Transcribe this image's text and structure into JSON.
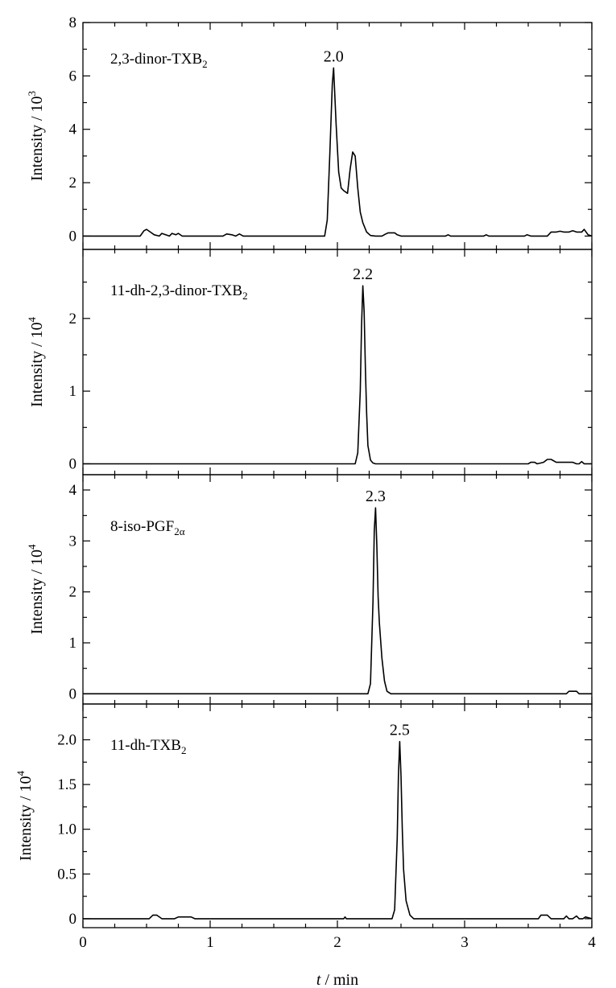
{
  "chart_data": {
    "type": "line",
    "title": "",
    "xlabel": {
      "italic": "t",
      "rest": " / min"
    },
    "x_ticks": [
      "0",
      "1",
      "2",
      "3",
      "4"
    ],
    "xlim": [
      0,
      4
    ],
    "panels": [
      {
        "name": "2,3-dinor-TXB2",
        "label": {
          "base": "2,3-dinor-TXB",
          "sub": "2"
        },
        "ylabel": {
          "base": "Intensity / 10",
          "sup": "3"
        },
        "ylim": [
          -0.5,
          8
        ],
        "y_ticks": [
          0,
          2,
          4,
          6,
          8
        ],
        "y_tick_labels": [
          "0",
          "2",
          "4",
          "6",
          "8"
        ],
        "peak": {
          "x": 1.97,
          "y": 6.3,
          "label": "2.0"
        },
        "series": {
          "x": [
            0,
            0.45,
            0.48,
            0.5,
            0.53,
            0.56,
            0.6,
            0.62,
            0.65,
            0.68,
            0.7,
            0.73,
            0.75,
            0.78,
            1.1,
            1.13,
            1.17,
            1.2,
            1.23,
            1.26,
            1.9,
            1.92,
            1.94,
            1.96,
            1.97,
            1.99,
            2.01,
            2.03,
            2.05,
            2.08,
            2.1,
            2.12,
            2.14,
            2.16,
            2.18,
            2.2,
            2.23,
            2.26,
            2.3,
            2.35,
            2.38,
            2.4,
            2.45,
            2.47,
            2.5,
            2.85,
            2.87,
            2.89,
            3.15,
            3.17,
            3.19,
            3.47,
            3.49,
            3.52,
            3.65,
            3.68,
            3.72,
            3.75,
            3.78,
            3.82,
            3.85,
            3.88,
            3.92,
            3.94,
            3.97,
            4.0
          ],
          "y": [
            0,
            0,
            0.2,
            0.25,
            0.15,
            0.05,
            0,
            0.1,
            0.05,
            0,
            0.1,
            0.05,
            0.1,
            0,
            0,
            0.08,
            0.05,
            0,
            0.08,
            0,
            0,
            0.6,
            3.0,
            5.7,
            6.3,
            4.2,
            2.4,
            1.8,
            1.7,
            1.6,
            2.5,
            3.15,
            3.0,
            1.8,
            0.9,
            0.5,
            0.15,
            0.02,
            0,
            0,
            0.08,
            0.12,
            0.12,
            0.05,
            0,
            0,
            0.05,
            0,
            0,
            0.05,
            0,
            0,
            0.05,
            0,
            0,
            0.15,
            0.15,
            0.18,
            0.15,
            0.15,
            0.2,
            0.15,
            0.15,
            0.25,
            0.05,
            0
          ]
        }
      },
      {
        "name": "11-dh-2,3-dinor-TXB2",
        "label": {
          "base": "11-dh-2,3-dinor-TXB",
          "sub": "2"
        },
        "ylabel": {
          "base": "Intensity / 10",
          "sup": "4"
        },
        "ylim": [
          -0.15,
          2.95
        ],
        "y_ticks": [
          0,
          1,
          2
        ],
        "y_tick_labels": [
          "0",
          "1",
          "2"
        ],
        "peak": {
          "x": 2.2,
          "y": 2.45,
          "label": "2.2"
        },
        "series": {
          "x": [
            0,
            2.14,
            2.16,
            2.18,
            2.19,
            2.2,
            2.21,
            2.22,
            2.23,
            2.24,
            2.26,
            2.28,
            2.3,
            3.5,
            3.52,
            3.55,
            3.57,
            3.62,
            3.65,
            3.68,
            3.72,
            3.75,
            3.85,
            3.88,
            3.9,
            3.92,
            3.94,
            4.0
          ],
          "y": [
            0,
            0,
            0.15,
            1.0,
            1.9,
            2.45,
            2.1,
            1.3,
            0.7,
            0.25,
            0.05,
            0.01,
            0,
            0,
            0.02,
            0.02,
            0,
            0.02,
            0.06,
            0.06,
            0.02,
            0.02,
            0.02,
            0,
            0,
            0.03,
            0,
            0
          ]
        }
      },
      {
        "name": "8-iso-PGF2α",
        "label": {
          "base": "8-iso-PGF",
          "sub": "2α"
        },
        "ylabel": {
          "base": "Intensity / 10",
          "sup": "4"
        },
        "ylim": [
          -0.2,
          4.3
        ],
        "y_ticks": [
          0,
          1,
          2,
          3,
          4
        ],
        "y_tick_labels": [
          "0",
          "1",
          "2",
          "3",
          "4"
        ],
        "peak": {
          "x": 2.3,
          "y": 3.65,
          "label": "2.3"
        },
        "series": {
          "x": [
            0,
            2.24,
            2.26,
            2.28,
            2.29,
            2.3,
            2.31,
            2.32,
            2.33,
            2.35,
            2.37,
            2.39,
            2.42,
            3.8,
            3.82,
            3.88,
            3.9,
            4.0
          ],
          "y": [
            0,
            0,
            0.2,
            1.8,
            3.2,
            3.65,
            2.9,
            1.9,
            1.4,
            0.7,
            0.25,
            0.05,
            0,
            0,
            0.05,
            0.05,
            0,
            0
          ]
        }
      },
      {
        "name": "11-dh-TXB2",
        "label": {
          "base": "11-dh-TXB",
          "sub": "2"
        },
        "ylabel": {
          "base": "Intensity / 10",
          "sup": "4"
        },
        "ylim": [
          -0.1,
          2.4
        ],
        "y_ticks": [
          0,
          0.5,
          1.0,
          1.5,
          2.0
        ],
        "y_tick_labels": [
          "0",
          "0.5",
          "1.0",
          "1.5",
          "2.0"
        ],
        "peak": {
          "x": 2.49,
          "y": 1.98,
          "label": "2.5"
        },
        "series": {
          "x": [
            0,
            0.52,
            0.55,
            0.58,
            0.62,
            0.72,
            0.75,
            0.85,
            0.88,
            2.05,
            2.06,
            2.07,
            2.43,
            2.45,
            2.47,
            2.48,
            2.49,
            2.5,
            2.51,
            2.52,
            2.54,
            2.57,
            2.6,
            3.58,
            3.6,
            3.65,
            3.68,
            3.78,
            3.8,
            3.82,
            3.85,
            3.88,
            3.9,
            3.93,
            3.95,
            4.0
          ],
          "y": [
            0,
            0,
            0.04,
            0.04,
            0,
            0,
            0.02,
            0.02,
            0,
            0,
            0.02,
            0,
            0,
            0.1,
            0.9,
            1.6,
            1.98,
            1.6,
            1.0,
            0.55,
            0.2,
            0.04,
            0,
            0,
            0.04,
            0.04,
            0,
            0,
            0.03,
            0,
            0,
            0.03,
            0,
            0,
            0.02,
            0
          ]
        }
      }
    ]
  }
}
